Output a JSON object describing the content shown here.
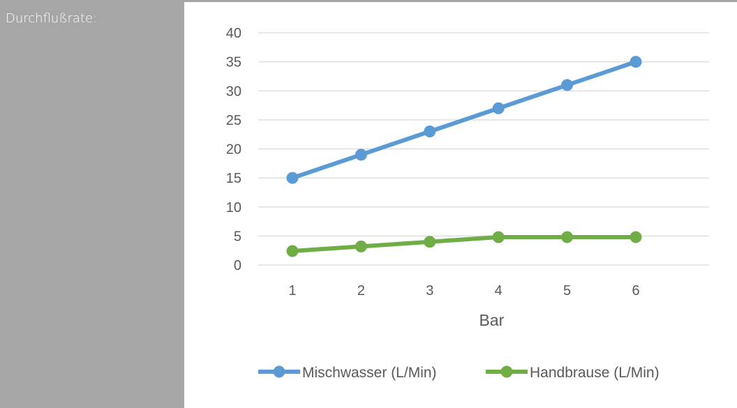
{
  "sidebar": {
    "label": "Durchflußrate:"
  },
  "chart_data": {
    "type": "line",
    "title": "",
    "xlabel": "Bar",
    "ylabel": "",
    "ylim": [
      0,
      40
    ],
    "yticks": [
      0,
      5,
      10,
      15,
      20,
      25,
      30,
      35,
      40
    ],
    "categories": [
      "1",
      "2",
      "3",
      "4",
      "5",
      "6"
    ],
    "grid": true,
    "legend_position": "bottom",
    "series": [
      {
        "name": "Mischwasser (L/Min)",
        "color": "#5b9bd5",
        "values": [
          15,
          19,
          23,
          27,
          31,
          35
        ]
      },
      {
        "name": "Handbrause (L/Min)",
        "color": "#70ad47",
        "values": [
          2.4,
          3.2,
          4.0,
          4.8,
          4.8,
          4.8
        ]
      }
    ]
  }
}
